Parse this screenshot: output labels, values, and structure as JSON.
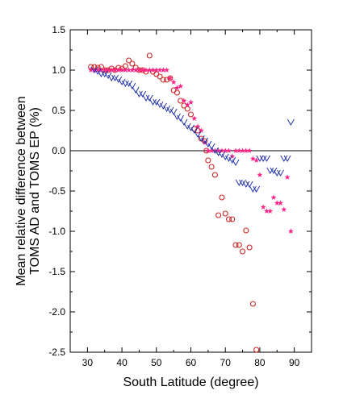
{
  "chart_data": {
    "type": "scatter",
    "xlabel": "South Latitude (degree)",
    "ylabel_line1": "Mean relative difference between",
    "ylabel_line2": "TOMS AD and TOMS EP (%)",
    "xlim": [
      25,
      95
    ],
    "ylim": [
      -2.5,
      1.5
    ],
    "xticks": [
      30,
      40,
      50,
      60,
      70,
      80,
      90
    ],
    "yticks": [
      1.5,
      1.0,
      0.5,
      0.0,
      -0.5,
      -1.0,
      -1.5,
      -2.0,
      -2.5
    ],
    "xtick_labels": [
      "30",
      "40",
      "50",
      "60",
      "70",
      "80",
      "90"
    ],
    "ytick_labels": [
      "1.5",
      "1.0",
      "0.5",
      "0.0",
      "-0.5",
      "-1.0",
      "-1.5",
      "-2.0",
      "-2.5"
    ],
    "reference_line_y": 0,
    "series": [
      {
        "marker": "circle-open",
        "color": "#cc2222",
        "x": [
          31,
          32,
          33,
          34,
          35,
          36,
          37,
          38,
          39,
          40,
          41,
          42,
          43,
          44,
          45,
          46,
          47,
          48,
          49,
          50,
          51,
          52,
          53,
          54,
          55,
          56,
          57,
          58,
          59,
          60,
          61,
          62,
          63,
          64,
          64.5,
          65,
          66,
          67,
          68,
          69,
          70,
          71,
          72,
          73,
          74,
          75,
          76,
          77,
          78,
          79
        ],
        "y": [
          1.04,
          1.04,
          1.03,
          1.04,
          1.0,
          1.0,
          1.02,
          1.0,
          1.03,
          1.02,
          1.05,
          1.12,
          1.08,
          1.03,
          1.0,
          1.0,
          0.98,
          1.18,
          0.98,
          0.95,
          0.92,
          0.88,
          0.88,
          0.9,
          0.75,
          0.72,
          0.62,
          0.56,
          0.52,
          0.45,
          0.27,
          0.25,
          0.15,
          0.12,
          0.0,
          -0.12,
          -0.2,
          -0.3,
          -0.8,
          -0.58,
          -0.78,
          -0.85,
          -0.85,
          -1.17,
          -1.17,
          -1.25,
          -0.99,
          -1.2,
          -1.9,
          -2.47
        ]
      },
      {
        "marker": "star",
        "color": "#ff2288",
        "x": [
          31,
          32,
          33,
          34,
          35,
          36,
          37,
          38,
          39,
          40,
          41,
          42,
          43,
          44,
          45,
          46,
          47,
          48,
          49,
          50,
          51,
          52,
          53,
          54,
          55,
          56,
          57,
          58,
          59,
          60,
          61,
          62,
          63,
          64,
          65,
          66,
          67,
          68,
          69,
          70,
          71,
          72,
          73,
          74,
          75,
          76,
          77,
          78,
          79,
          80,
          81,
          82,
          83,
          84,
          85,
          86,
          87,
          88,
          89
        ],
        "y": [
          1.0,
          1.0,
          1.0,
          1.0,
          1.0,
          1.0,
          1.0,
          1.0,
          1.0,
          1.0,
          1.0,
          1.0,
          1.0,
          1.0,
          1.0,
          1.0,
          1.0,
          1.0,
          1.0,
          1.0,
          1.0,
          1.0,
          1.0,
          0.9,
          0.85,
          0.78,
          0.8,
          0.62,
          0.57,
          0.6,
          0.4,
          0.3,
          0.25,
          0.1,
          0.0,
          0.0,
          0.0,
          0.0,
          0.0,
          0.0,
          0.0,
          -0.07,
          0.0,
          0.0,
          0.0,
          0.0,
          0.0,
          -0.1,
          -0.12,
          -0.3,
          -0.7,
          -0.75,
          -0.75,
          -0.58,
          -0.65,
          -0.65,
          -0.73,
          -0.33,
          -1.0
        ]
      },
      {
        "marker": "v-mark",
        "color": "#2233aa",
        "x": [
          32,
          33,
          34,
          35,
          36,
          37,
          38,
          39,
          40,
          41,
          42,
          43,
          44,
          45,
          46,
          47,
          48,
          49,
          50,
          51,
          52,
          53,
          54,
          55,
          56,
          57,
          58,
          59,
          60,
          61,
          62,
          63,
          64,
          65,
          66,
          67,
          68,
          69,
          70,
          71,
          72,
          73,
          74,
          75,
          76,
          77,
          78,
          79,
          80,
          81,
          82,
          83,
          84,
          85,
          86,
          87,
          88,
          89
        ],
        "y": [
          1.0,
          0.98,
          0.95,
          0.95,
          0.93,
          0.9,
          0.9,
          0.88,
          0.85,
          0.83,
          0.83,
          0.8,
          0.75,
          0.7,
          0.7,
          0.65,
          0.65,
          0.6,
          0.6,
          0.57,
          0.55,
          0.52,
          0.5,
          0.48,
          0.42,
          0.4,
          0.35,
          0.3,
          0.28,
          0.25,
          0.2,
          0.15,
          0.12,
          0.08,
          0.05,
          0.0,
          -0.03,
          -0.05,
          -0.08,
          -0.1,
          -0.12,
          -0.15,
          -0.4,
          -0.4,
          -0.42,
          -0.42,
          -0.48,
          -0.48,
          -0.1,
          -0.1,
          -0.1,
          -0.25,
          -0.25,
          -0.28,
          -0.28,
          -0.1,
          -0.1,
          0.35
        ]
      }
    ]
  }
}
